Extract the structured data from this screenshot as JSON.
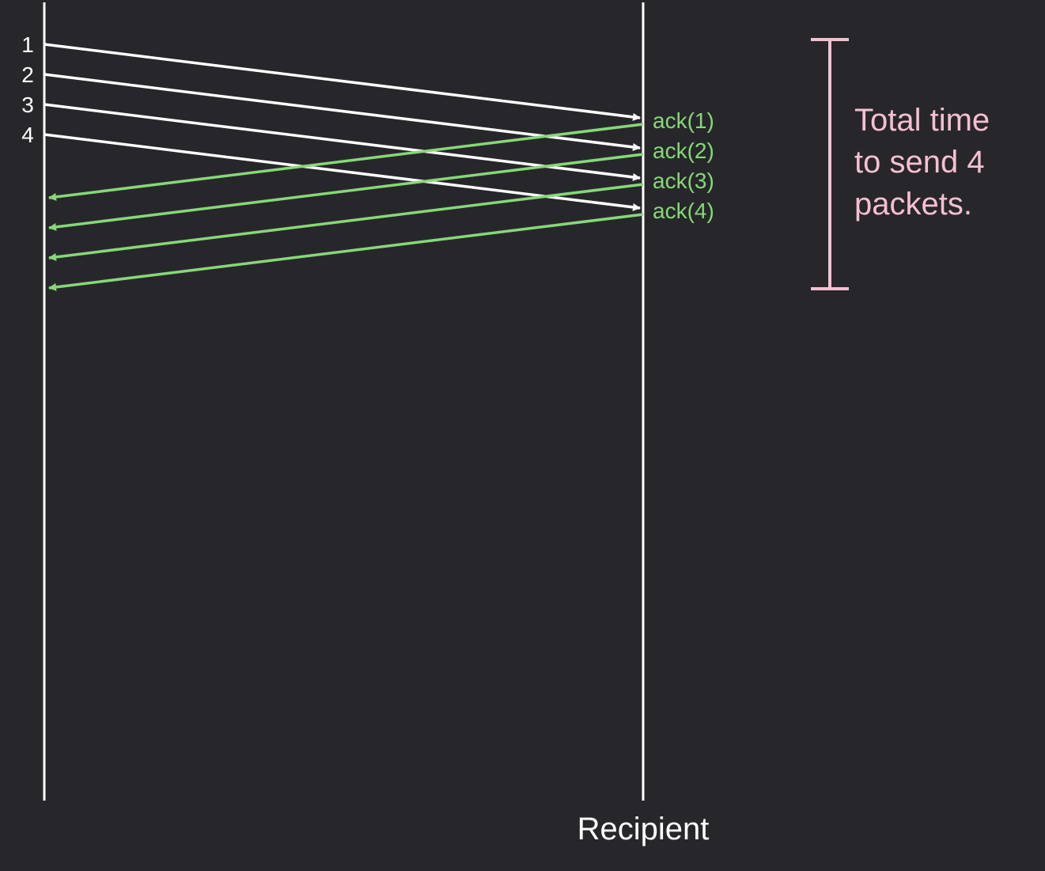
{
  "packets": [
    {
      "label": "1",
      "ack": "ack(1)"
    },
    {
      "label": "2",
      "ack": "ack(2)"
    },
    {
      "label": "3",
      "ack": "ack(3)"
    },
    {
      "label": "4",
      "ack": "ack(4)"
    }
  ],
  "recipient_label": "Recipient",
  "bracket_note": {
    "lines": [
      "Total time",
      "to send 4",
      "packets."
    ]
  },
  "colors": {
    "background": "#27272b",
    "timeline": "#ffffff",
    "packet_arrow": "#ffffff",
    "ack_arrow": "#86d877",
    "note": "#f6bfd2"
  }
}
